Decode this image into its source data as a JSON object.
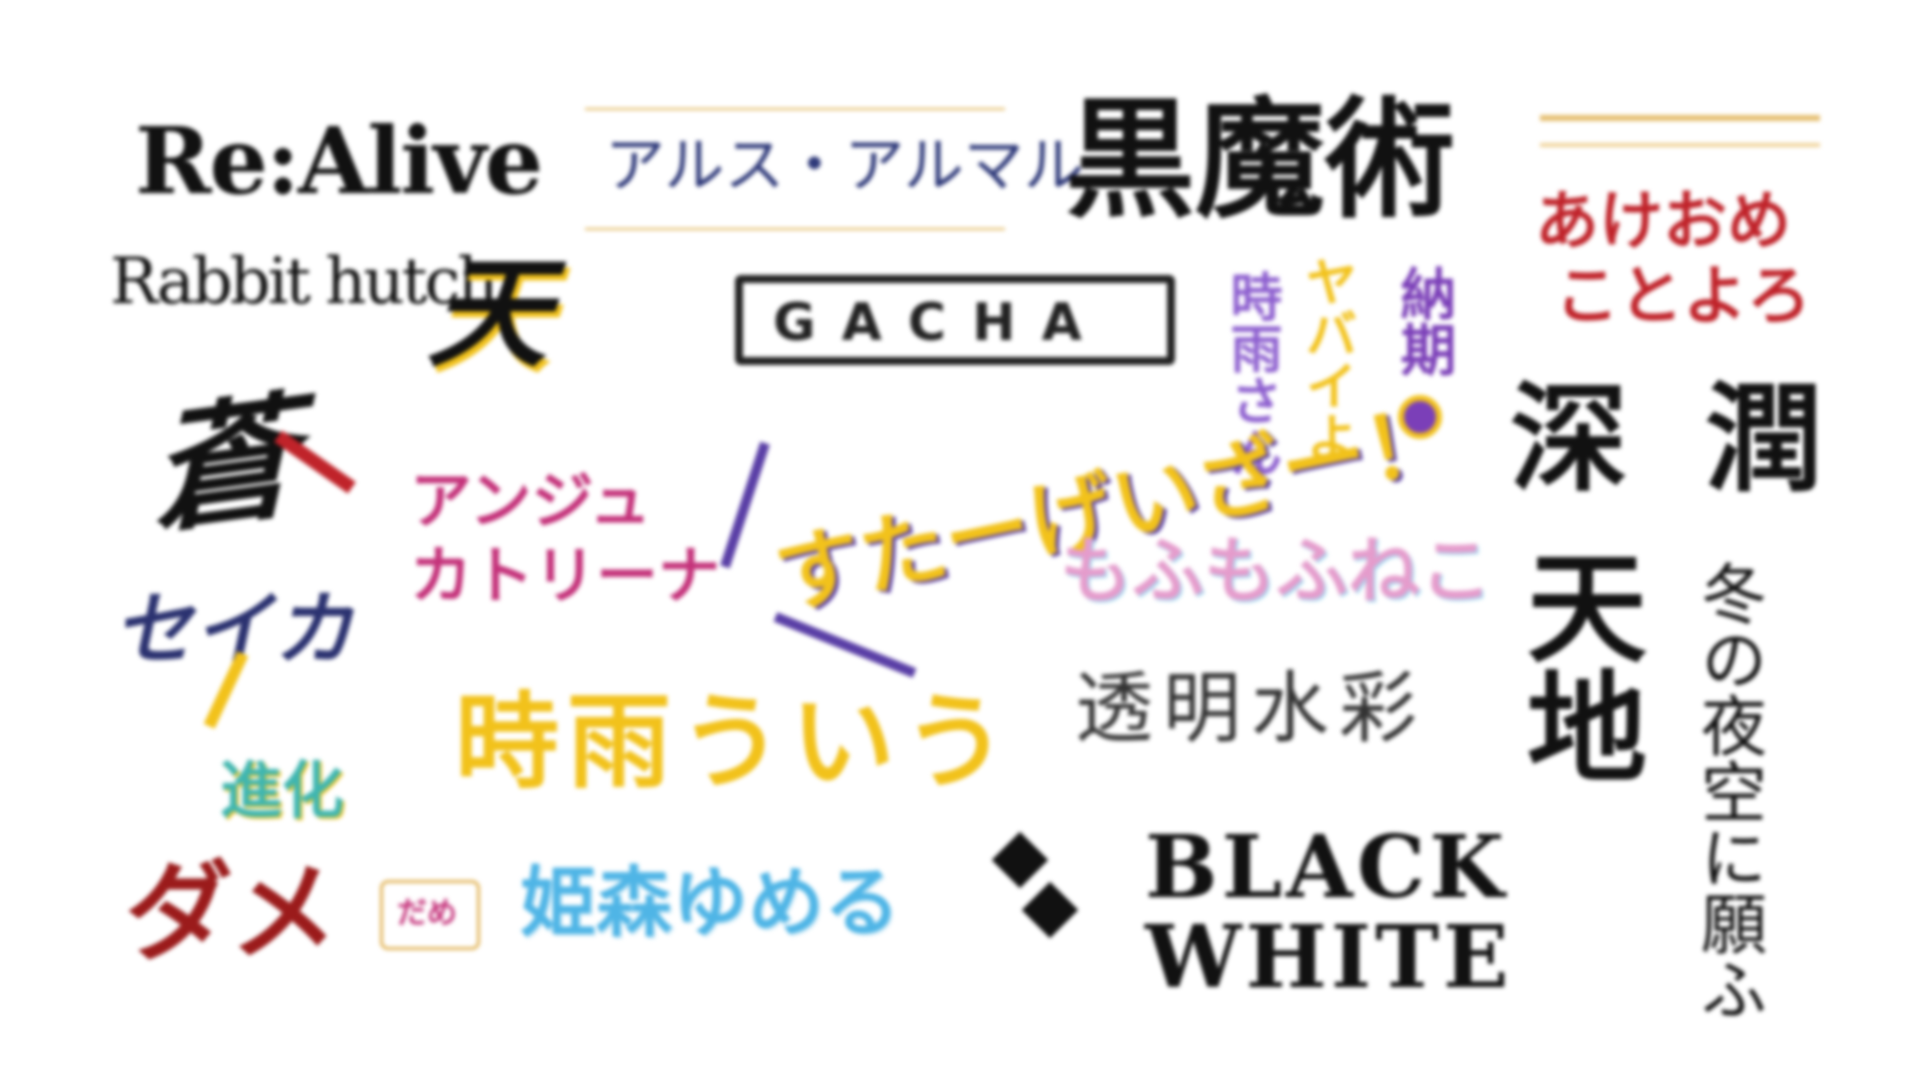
{
  "logos": {
    "re_alive": "Re:Alive",
    "alus_almal": "アルス・アルマル",
    "kuromajutsu": "黒魔術",
    "akeome_1": "あけおめ",
    "akeome_2": "ことよろ",
    "rabbit_hutch": "Rabbit hutch",
    "brush_mark": "天",
    "gacha": "GACHA",
    "yabai_1": "時雨さん",
    "yabai_2": "ヤバイよ",
    "nouki": "納期",
    "shin": "深",
    "jun": "潤",
    "shin_mark": "蒼",
    "anju_1": "アンジュ",
    "anju_2": "カトリーナ",
    "sugee": "すたーげいざー！",
    "fuwafuwa": "もふもふねこ",
    "tenchi": "天地",
    "fuyu": "冬の夜空に願ふ",
    "seika": "セイカ",
    "shigure_ui": "時雨ういう",
    "toumei": "透明水彩",
    "shinka": "進化",
    "dame": "ダメ",
    "dame_small": "だめ",
    "himemori": "姫森ゆめる",
    "black": "BLACK",
    "white": "WHITE"
  },
  "colors": {
    "black": "#111111",
    "gold": "#e2b55a",
    "red": "#c0232a",
    "navy": "#2b3270",
    "yellow": "#f2c21b",
    "magenta": "#c4327a",
    "purple": "#8d5fcf",
    "pink": "#e59ccc",
    "teal": "#3fb6b0",
    "sky": "#4fb5e6",
    "darkred": "#9b1b1b"
  }
}
